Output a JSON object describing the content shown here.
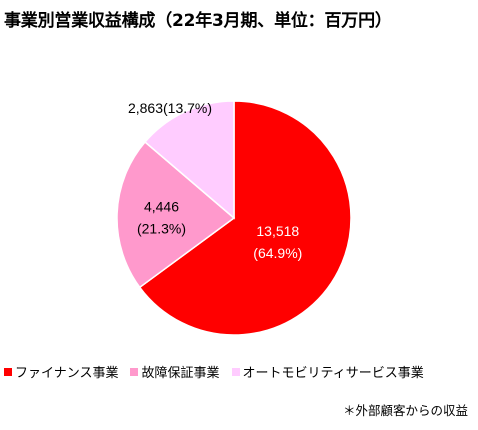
{
  "title": "事業別営業収益構成（22年3月期、単位：百万円）",
  "footnote": "＊外部顧客からの収益",
  "chart_data": {
    "type": "pie",
    "title": "事業別営業収益構成（22年3月期、単位：百万円）",
    "start": "12 o'clock, clockwise",
    "slices": [
      {
        "name": "ファイナンス事業",
        "value": 13518,
        "percent": 64.9,
        "label_line1": "13,518",
        "label_line2": "(64.9%)",
        "color": "#ff0000",
        "label_color": "#ffffff"
      },
      {
        "name": "故障保証事業",
        "value": 4446,
        "percent": 21.3,
        "label_line1": "4,446",
        "label_line2": "(21.3%)",
        "color": "#ff99cc",
        "label_color": "#000000"
      },
      {
        "name": "オートモビリティサービス事業",
        "value": 2863,
        "percent": 13.7,
        "label_line1": "2,863(13.7%)",
        "label_line2": "",
        "color": "#ffccff",
        "label_color": "#000000"
      }
    ],
    "legend": [
      "ファイナンス事業",
      "故障保証事業",
      "オートモビリティサービス事業"
    ],
    "legend_position": "bottom"
  }
}
